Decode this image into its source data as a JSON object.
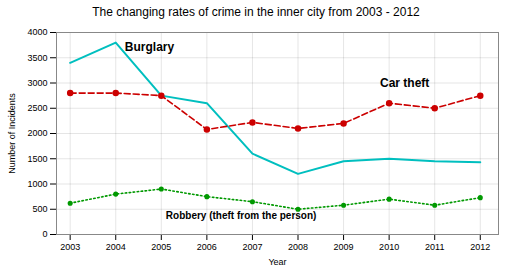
{
  "chart_data": {
    "type": "line",
    "title": "The changing rates of crime in the inner city from 2003 - 2012",
    "xlabel": "Year",
    "ylabel": "Number of Incidents",
    "x": [
      2003,
      2004,
      2005,
      2006,
      2007,
      2008,
      2009,
      2010,
      2011,
      2012
    ],
    "series": [
      {
        "name": "Burglary",
        "color": "#00BFBF",
        "line_style": "solid",
        "marker": "none",
        "values": [
          3400,
          3800,
          2750,
          2600,
          1600,
          1200,
          1450,
          1500,
          1450,
          1430
        ]
      },
      {
        "name": "Car theft",
        "color": "#CC0000",
        "line_style": "dashed",
        "marker": "circle",
        "values": [
          2800,
          2800,
          2750,
          2080,
          2220,
          2100,
          2200,
          2600,
          2500,
          2750
        ]
      },
      {
        "name": "Robbery (theft from the person)",
        "color": "#009900",
        "line_style": "dotted",
        "marker": "circle",
        "values": [
          620,
          800,
          900,
          750,
          650,
          500,
          580,
          700,
          580,
          730
        ]
      }
    ],
    "annotations": [
      {
        "text": "Burglary",
        "x": 2004.2,
        "y": 3630
      },
      {
        "text": "Car theft",
        "x": 2009.8,
        "y": 2920
      },
      {
        "text": "Robbery (theft from the person)",
        "x": 2005.1,
        "y": 300
      }
    ],
    "xlim": [
      2002.7,
      2012.4
    ],
    "xticks": [
      2003,
      2004,
      2005,
      2006,
      2007,
      2008,
      2009,
      2010,
      2011,
      2012
    ],
    "ylim": [
      0,
      4000
    ],
    "yticks": [
      0,
      500,
      1000,
      1500,
      2000,
      2500,
      3000,
      3500,
      4000
    ],
    "grid": true
  }
}
